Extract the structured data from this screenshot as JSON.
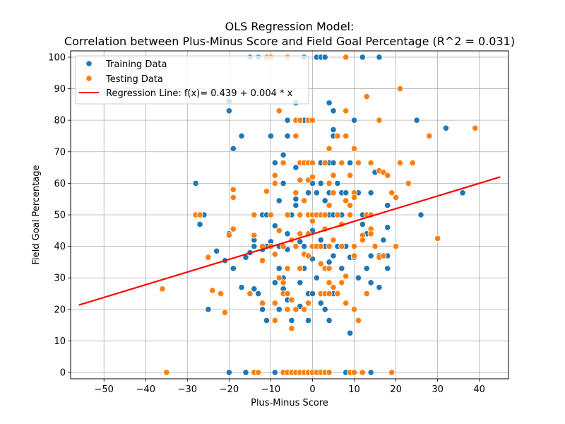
{
  "chart_data": {
    "type": "scatter",
    "title_line1": "OLS Regression Model:",
    "title_line2": "Correlation between Plus-Minus Score and Field Goal Percentage (R^2 = 0.031)",
    "xlabel": "Plus-Minus Score",
    "ylabel": "Field Goal Percentage",
    "xlim": [
      -58,
      47
    ],
    "ylim": [
      -2,
      102
    ],
    "xticks": [
      -50,
      -40,
      -30,
      -20,
      -10,
      0,
      10,
      20,
      30,
      40
    ],
    "yticks": [
      0,
      10,
      20,
      30,
      40,
      50,
      60,
      70,
      80,
      90,
      100
    ],
    "grid": true,
    "legend_position": "upper-left",
    "regression": {
      "label": "Regression Line: f(x)= 0.439 + 0.004 * x",
      "color": "#ff0000",
      "x": [
        -56,
        45
      ],
      "y": [
        21.4,
        62.0
      ]
    },
    "series": [
      {
        "name": "Training Data",
        "color": "#1f77b4",
        "points": [
          [
            -28,
            60
          ],
          [
            -27,
            47
          ],
          [
            -26,
            50
          ],
          [
            -25,
            20
          ],
          [
            -23,
            38.5
          ],
          [
            -21,
            35.5
          ],
          [
            -20,
            86
          ],
          [
            -20,
            83
          ],
          [
            -20,
            44
          ],
          [
            -20,
            0
          ],
          [
            -19,
            71
          ],
          [
            -19,
            33
          ],
          [
            -17,
            75
          ],
          [
            -17,
            27
          ],
          [
            -16,
            36.5
          ],
          [
            -16,
            0
          ],
          [
            -15,
            100
          ],
          [
            -15,
            38
          ],
          [
            -14,
            42
          ],
          [
            -14,
            40
          ],
          [
            -14,
            26.5
          ],
          [
            -13,
            100
          ],
          [
            -13,
            25
          ],
          [
            -13,
            0
          ],
          [
            -12,
            50
          ],
          [
            -12,
            39
          ],
          [
            -12,
            20
          ],
          [
            -11,
            50
          ],
          [
            -11,
            40
          ],
          [
            -11,
            16.5
          ],
          [
            -10,
            75
          ],
          [
            -10,
            50
          ],
          [
            -10,
            41.5
          ],
          [
            -9,
            46.5
          ],
          [
            -9,
            66.5
          ],
          [
            -9,
            28.5
          ],
          [
            -9,
            0
          ],
          [
            -8,
            54.5
          ],
          [
            -8,
            40
          ],
          [
            -8,
            33
          ],
          [
            -8,
            20
          ],
          [
            -7,
            69
          ],
          [
            -7,
            60
          ],
          [
            -7,
            30
          ],
          [
            -7,
            26.5
          ],
          [
            -6,
            80
          ],
          [
            -6,
            75
          ],
          [
            -6,
            44
          ],
          [
            -6,
            39
          ],
          [
            -6,
            23
          ],
          [
            -5,
            50
          ],
          [
            -5,
            42
          ],
          [
            -5,
            16.5
          ],
          [
            -5,
            0
          ],
          [
            -4,
            85.5
          ],
          [
            -4,
            75
          ],
          [
            -4,
            65
          ],
          [
            -4,
            55
          ],
          [
            -4,
            53
          ],
          [
            -4,
            20
          ],
          [
            -3,
            50
          ],
          [
            -3,
            41.5
          ],
          [
            -3,
            28.5
          ],
          [
            -3,
            21
          ],
          [
            -3,
            0
          ],
          [
            -2,
            100
          ],
          [
            -2,
            80
          ],
          [
            -2,
            54.5
          ],
          [
            -2,
            40
          ],
          [
            -2,
            33
          ],
          [
            -1,
            57
          ],
          [
            -1,
            50
          ],
          [
            -1,
            25
          ],
          [
            -1,
            16.5
          ],
          [
            0,
            60
          ],
          [
            0,
            45
          ],
          [
            0,
            36
          ],
          [
            0,
            25
          ],
          [
            0,
            0
          ],
          [
            1,
            100
          ],
          [
            1,
            57
          ],
          [
            1,
            40
          ],
          [
            1,
            30
          ],
          [
            2,
            100
          ],
          [
            2,
            66.5
          ],
          [
            2,
            60
          ],
          [
            2,
            42
          ],
          [
            2,
            22
          ],
          [
            3,
            100
          ],
          [
            3,
            54.5
          ],
          [
            3,
            40
          ],
          [
            3,
            25
          ],
          [
            3,
            20
          ],
          [
            4,
            85.5
          ],
          [
            4,
            66.5
          ],
          [
            4,
            57
          ],
          [
            4,
            50
          ],
          [
            4,
            35
          ],
          [
            4,
            16.5
          ],
          [
            5,
            83
          ],
          [
            5,
            77
          ],
          [
            5,
            75
          ],
          [
            5,
            66.5
          ],
          [
            5,
            50
          ],
          [
            5,
            37
          ],
          [
            5,
            25
          ],
          [
            6,
            60
          ],
          [
            6,
            40
          ],
          [
            7,
            57
          ],
          [
            7,
            50
          ],
          [
            7,
            33
          ],
          [
            8,
            100
          ],
          [
            8,
            57
          ],
          [
            8,
            40
          ],
          [
            8,
            0
          ],
          [
            9,
            66.5
          ],
          [
            9,
            50
          ],
          [
            9,
            36.5
          ],
          [
            9,
            12.5
          ],
          [
            10,
            80
          ],
          [
            10,
            36.5
          ],
          [
            11,
            57
          ],
          [
            11,
            30
          ],
          [
            12,
            100
          ],
          [
            12,
            50
          ],
          [
            12,
            47
          ],
          [
            13,
            44
          ],
          [
            13,
            33
          ],
          [
            14,
            57
          ],
          [
            14,
            37
          ],
          [
            14,
            28.5
          ],
          [
            14,
            0
          ],
          [
            15,
            63.5
          ],
          [
            16,
            100
          ],
          [
            16,
            37
          ],
          [
            16,
            27
          ],
          [
            17,
            42
          ],
          [
            18,
            53
          ],
          [
            18,
            46
          ],
          [
            18,
            37
          ],
          [
            18,
            33
          ],
          [
            25,
            80
          ],
          [
            26,
            50
          ],
          [
            32,
            77.5
          ],
          [
            36,
            57
          ]
        ]
      },
      {
        "name": "Testing Data",
        "color": "#ff7f0e",
        "points": [
          [
            -36,
            26.5
          ],
          [
            -35,
            0
          ],
          [
            -28,
            50
          ],
          [
            -27,
            50
          ],
          [
            -25,
            36.5
          ],
          [
            -24,
            26
          ],
          [
            -22,
            25
          ],
          [
            -21,
            19
          ],
          [
            -20,
            43.5
          ],
          [
            -19,
            58
          ],
          [
            -19,
            55.5
          ],
          [
            -19,
            45.5
          ],
          [
            -15,
            25
          ],
          [
            -14,
            50
          ],
          [
            -14,
            43.5
          ],
          [
            -14,
            0
          ],
          [
            -13,
            0
          ],
          [
            -12,
            40
          ],
          [
            -12,
            35.5
          ],
          [
            -12,
            22
          ],
          [
            -11,
            57.5
          ],
          [
            -11,
            100
          ],
          [
            -10,
            100
          ],
          [
            -10,
            50
          ],
          [
            -10,
            40
          ],
          [
            -9,
            62.5
          ],
          [
            -9,
            60
          ],
          [
            -9,
            37.5
          ],
          [
            -9,
            22
          ],
          [
            -9,
            16.5
          ],
          [
            -8,
            83
          ],
          [
            -8,
            45
          ],
          [
            -8,
            30
          ],
          [
            -7,
            66.5
          ],
          [
            -7,
            40
          ],
          [
            -7,
            28.5
          ],
          [
            -7,
            25
          ],
          [
            -7,
            0
          ],
          [
            -6,
            100
          ],
          [
            -6,
            50
          ],
          [
            -6,
            33
          ],
          [
            -6,
            25
          ],
          [
            -6,
            20
          ],
          [
            -6,
            0
          ],
          [
            -5,
            42
          ],
          [
            -5,
            23
          ],
          [
            -5,
            14
          ],
          [
            -5,
            0
          ],
          [
            -4,
            80
          ],
          [
            -4,
            75
          ],
          [
            -4,
            57
          ],
          [
            -4,
            40
          ],
          [
            -4,
            20
          ],
          [
            -4,
            0
          ],
          [
            -3,
            80
          ],
          [
            -3,
            66.5
          ],
          [
            -3,
            61
          ],
          [
            -3,
            50
          ],
          [
            -3,
            44
          ],
          [
            -3,
            33
          ],
          [
            -3,
            0
          ],
          [
            -2,
            66.5
          ],
          [
            -2,
            54.5
          ],
          [
            -2,
            37.5
          ],
          [
            -2,
            20
          ],
          [
            -2,
            0
          ],
          [
            -1,
            80
          ],
          [
            -1,
            66.5
          ],
          [
            -1,
            61
          ],
          [
            -1,
            50
          ],
          [
            -1,
            44
          ],
          [
            -1,
            37
          ],
          [
            -1,
            22
          ],
          [
            -1,
            0
          ],
          [
            0,
            80
          ],
          [
            0,
            66.5
          ],
          [
            0,
            62
          ],
          [
            0,
            50
          ],
          [
            0,
            48
          ],
          [
            0,
            40
          ],
          [
            0,
            0
          ],
          [
            1,
            50
          ],
          [
            1,
            40
          ],
          [
            1,
            0
          ],
          [
            2,
            50
          ],
          [
            2,
            40
          ],
          [
            2,
            34.5
          ],
          [
            2,
            25
          ],
          [
            2,
            0
          ],
          [
            3,
            66.5
          ],
          [
            3,
            50
          ],
          [
            3,
            45.5
          ],
          [
            3,
            33
          ],
          [
            3,
            25
          ],
          [
            3,
            0
          ],
          [
            4,
            71
          ],
          [
            4,
            60
          ],
          [
            4,
            53
          ],
          [
            4,
            40
          ],
          [
            4,
            33
          ],
          [
            4,
            28.5
          ],
          [
            4,
            25
          ],
          [
            4,
            0
          ],
          [
            5,
            62.5
          ],
          [
            5,
            57
          ],
          [
            5,
            42
          ],
          [
            5,
            27
          ],
          [
            6,
            75
          ],
          [
            6,
            50
          ],
          [
            6,
            25
          ],
          [
            7,
            66.5
          ],
          [
            7,
            47
          ],
          [
            7,
            40
          ],
          [
            7,
            28.5
          ],
          [
            8,
            100
          ],
          [
            8,
            83
          ],
          [
            8,
            75
          ],
          [
            8,
            54.5
          ],
          [
            8,
            30.5
          ],
          [
            8,
            22
          ],
          [
            9,
            62.5
          ],
          [
            9,
            53
          ],
          [
            9,
            50
          ],
          [
            9,
            0
          ],
          [
            10,
            71
          ],
          [
            10,
            57
          ],
          [
            10,
            55.5
          ],
          [
            10,
            40
          ],
          [
            10,
            37
          ],
          [
            10,
            20
          ],
          [
            10,
            0
          ],
          [
            11,
            66.5
          ],
          [
            11,
            16.5
          ],
          [
            12,
            0
          ],
          [
            12,
            43.5
          ],
          [
            12,
            42
          ],
          [
            13,
            87.5
          ],
          [
            13,
            50
          ],
          [
            13,
            25
          ],
          [
            14,
            66.5
          ],
          [
            14,
            50
          ],
          [
            14,
            45.5
          ],
          [
            14,
            44
          ],
          [
            15,
            40
          ],
          [
            16,
            80
          ],
          [
            16,
            64
          ],
          [
            16,
            36.5
          ],
          [
            17,
            63.5
          ],
          [
            17,
            37
          ],
          [
            18,
            62.5
          ],
          [
            19,
            57
          ],
          [
            19,
            0
          ],
          [
            20,
            55.5
          ],
          [
            20,
            40
          ],
          [
            21,
            90
          ],
          [
            21,
            66.5
          ],
          [
            23,
            60
          ],
          [
            24,
            66.5
          ],
          [
            28,
            75
          ],
          [
            30,
            42.5
          ],
          [
            39,
            77.5
          ]
        ]
      }
    ]
  }
}
